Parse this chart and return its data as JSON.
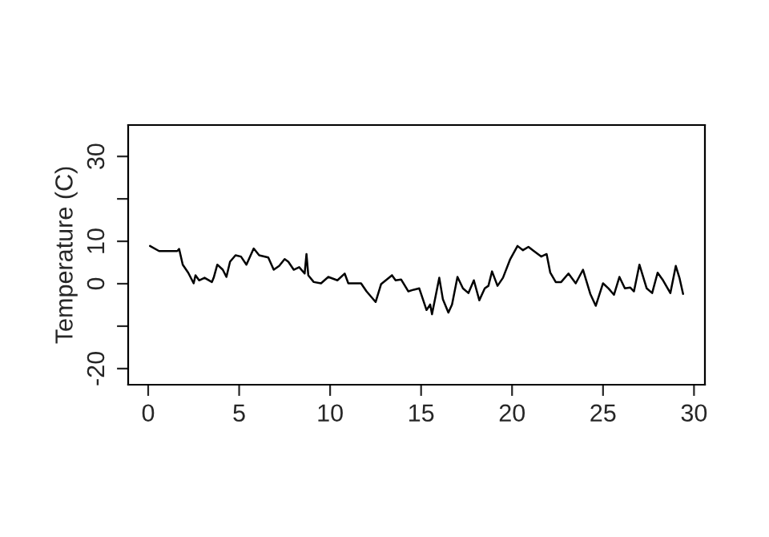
{
  "chart_data": {
    "type": "line",
    "ylabel": "Temperature (C)",
    "x": [
      0.1,
      0.6,
      1.6,
      1.7,
      1.9,
      2.2,
      2.5,
      2.6,
      2.8,
      3.1,
      3.5,
      3.6,
      3.8,
      4.1,
      4.3,
      4.5,
      4.8,
      5.1,
      5.4,
      5.8,
      6.1,
      6.6,
      6.9,
      7.2,
      7.5,
      7.7,
      8.0,
      8.3,
      8.6,
      8.7,
      8.8,
      9.1,
      9.5,
      9.9,
      10.4,
      10.8,
      11.0,
      11.7,
      12.0,
      12.5,
      12.8,
      13.4,
      13.6,
      13.9,
      14.3,
      14.6,
      14.9,
      15.3,
      15.5,
      15.6,
      16.0,
      16.2,
      16.5,
      16.7,
      17.0,
      17.3,
      17.6,
      17.9,
      18.2,
      18.5,
      18.7,
      18.9,
      19.2,
      19.5,
      19.9,
      20.3,
      20.6,
      20.9,
      21.2,
      21.6,
      21.9,
      22.1,
      22.4,
      22.7,
      23.1,
      23.5,
      23.9,
      24.3,
      24.6,
      25.0,
      25.3,
      25.6,
      25.9,
      26.2,
      26.5,
      26.7,
      27.0,
      27.4,
      27.7,
      28.0,
      28.3,
      28.7,
      29.0,
      29.2,
      29.4
    ],
    "series": [
      {
        "color": "#000000",
        "values": [
          8.9,
          7.7,
          7.7,
          8.2,
          4.5,
          2.6,
          0.1,
          2.0,
          0.8,
          1.4,
          0.4,
          1.4,
          4.5,
          3.3,
          1.6,
          5.2,
          6.7,
          6.4,
          4.5,
          8.3,
          6.7,
          6.2,
          3.3,
          4.2,
          5.8,
          5.2,
          3.3,
          3.9,
          2.4,
          7.0,
          2.0,
          0.4,
          0.1,
          1.6,
          0.8,
          2.4,
          0.1,
          0.1,
          -1.8,
          -4.3,
          -0.1,
          2.0,
          0.8,
          1.0,
          -1.8,
          -1.4,
          -1.1,
          -6.2,
          -4.9,
          -7.2,
          1.4,
          -3.7,
          -6.8,
          -4.9,
          1.6,
          -1.1,
          -2.2,
          0.8,
          -3.9,
          -1.1,
          -0.5,
          2.9,
          -0.5,
          1.4,
          5.8,
          8.9,
          7.9,
          8.7,
          7.7,
          6.4,
          7.0,
          2.6,
          0.4,
          0.4,
          2.4,
          0.1,
          3.3,
          -2.4,
          -5.2,
          0.1,
          -1.1,
          -2.6,
          1.6,
          -1.1,
          -0.9,
          -1.8,
          4.5,
          -1.1,
          -2.2,
          2.6,
          0.8,
          -2.2,
          4.2,
          1.4,
          -2.4
        ]
      }
    ],
    "xlim": [
      -1.1,
      30.6
    ],
    "ylim": [
      -23.8,
      37.4
    ],
    "xticks": [
      0,
      5,
      10,
      15,
      20,
      25,
      30
    ],
    "yticks": [
      -20,
      {
        "value": -10,
        "label": null
      },
      0,
      10,
      {
        "value": 20,
        "label": null
      },
      30
    ],
    "grid": false,
    "legend": false,
    "marker": "none",
    "line_style": "solid"
  }
}
